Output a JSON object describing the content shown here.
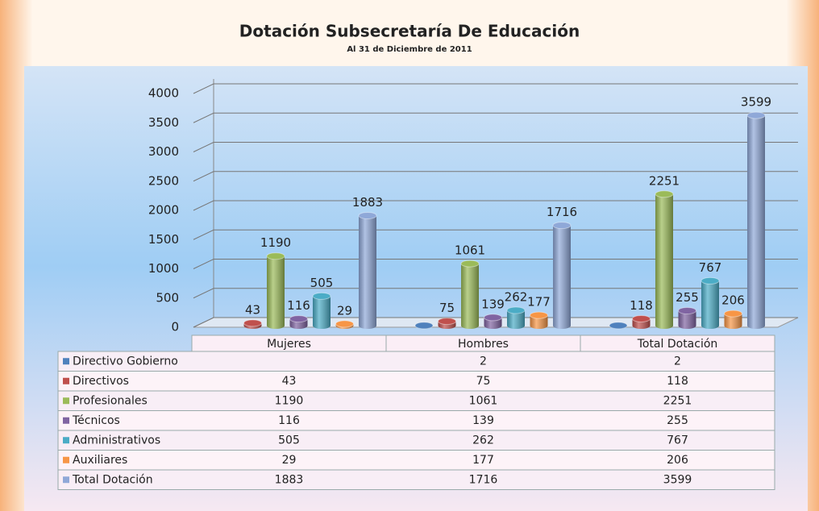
{
  "chart_data": {
    "type": "bar3d",
    "title": "Dotación Subsecretaría De Educación",
    "subtitle": "Al 31 de Diciembre de 2011",
    "categories": [
      "Mujeres",
      "Hombres",
      "Total Dotación"
    ],
    "series": [
      {
        "name": "Directivo Gobierno",
        "color": "#4f81bd",
        "values": [
          null,
          2,
          2
        ]
      },
      {
        "name": "Directivos",
        "color": "#c0504d",
        "values": [
          43,
          75,
          118
        ]
      },
      {
        "name": "Profesionales",
        "color": "#9bbb59",
        "values": [
          1190,
          1061,
          2251
        ]
      },
      {
        "name": "Técnicos",
        "color": "#8064a2",
        "values": [
          116,
          139,
          255
        ]
      },
      {
        "name": "Administrativos",
        "color": "#4bacc6",
        "values": [
          505,
          262,
          767
        ]
      },
      {
        "name": "Auxiliares",
        "color": "#f79646",
        "values": [
          29,
          177,
          206
        ]
      },
      {
        "name": "Total Dotación",
        "color": "#8fa8d8",
        "values": [
          1883,
          1716,
          3599
        ]
      }
    ],
    "ylim": [
      0,
      4000
    ],
    "yticks": [
      0,
      500,
      1000,
      1500,
      2000,
      2500,
      3000,
      3500,
      4000
    ],
    "grid": true
  }
}
